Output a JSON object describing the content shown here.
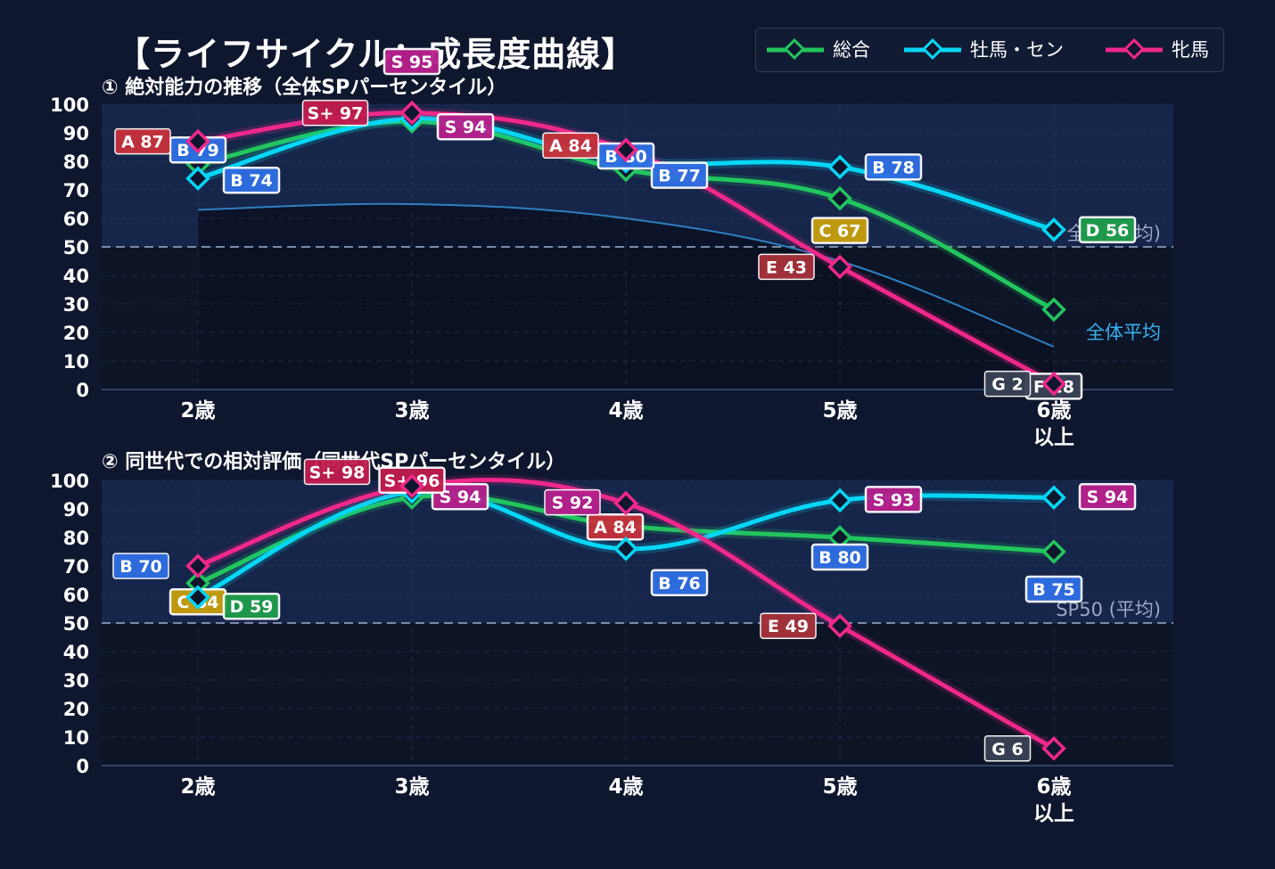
{
  "title": "【ライフサイクル：成長度曲線】",
  "legend": [
    {
      "name": "総合",
      "color": "#22c55e"
    },
    {
      "name": "牡馬・セン",
      "color": "#06d6f5"
    },
    {
      "name": "牝馬",
      "color": "#f0288a"
    }
  ],
  "chart_data": [
    {
      "type": "line",
      "title": "① 絶対能力の推移（全体SPパーセンタイル）",
      "x": [
        "2歳",
        "3歳",
        "4歳",
        "5歳",
        "6歳\n以上"
      ],
      "ylim": [
        0,
        100
      ],
      "yticks": [
        0,
        10,
        20,
        30,
        40,
        50,
        60,
        70,
        80,
        90,
        100
      ],
      "grid": true,
      "reference_line": {
        "value": 50,
        "label": "全体平均"
      },
      "reference_line_2": {
        "value": 50,
        "label": "全…5…均)"
      },
      "average_curve": {
        "label": "全体平均",
        "values": [
          63,
          65,
          60,
          45,
          15
        ]
      },
      "series": [
        {
          "name": "総合",
          "color": "#22c55e",
          "values": [
            79,
            94,
            77,
            67,
            28
          ],
          "labels": [
            "B 79",
            "S 94",
            "B 77",
            "C 67",
            "F 28"
          ]
        },
        {
          "name": "牡馬・セン",
          "color": "#06d6f5",
          "values": [
            74,
            95,
            80,
            78,
            56
          ],
          "labels": [
            "B 74",
            "S 95",
            "B 80",
            "B 78",
            "D 56"
          ]
        },
        {
          "name": "牝馬",
          "color": "#f0288a",
          "values": [
            87,
            97,
            84,
            43,
            2
          ],
          "labels": [
            "A 87",
            "S+ 97",
            "A 84",
            "E 43",
            "G 2"
          ]
        }
      ]
    },
    {
      "type": "line",
      "title": "② 同世代での相対評価（同世代SPパーセンタイル）",
      "x": [
        "2歳",
        "3歳",
        "4歳",
        "5歳",
        "6歳\n以上"
      ],
      "ylim": [
        0,
        100
      ],
      "yticks": [
        0,
        10,
        20,
        30,
        40,
        50,
        60,
        70,
        80,
        90,
        100
      ],
      "grid": true,
      "reference_line": {
        "value": 50,
        "label": "SP50 (平均)"
      },
      "series": [
        {
          "name": "総合",
          "color": "#22c55e",
          "values": [
            64,
            94,
            84,
            80,
            75
          ],
          "labels": [
            "C 64",
            "S 94",
            "A 84",
            "B 80",
            "B 75"
          ]
        },
        {
          "name": "牡馬・セン",
          "color": "#06d6f5",
          "values": [
            59,
            96,
            76,
            93,
            94
          ],
          "labels": [
            "D 59",
            "S+ 96",
            "B 76",
            "S 93",
            "S 94"
          ]
        },
        {
          "name": "牝馬",
          "color": "#f0288a",
          "values": [
            70,
            98,
            92,
            49,
            6
          ],
          "labels": [
            "B 70",
            "S+ 98",
            "S 92",
            "E 49",
            "G 6"
          ]
        }
      ]
    }
  ]
}
